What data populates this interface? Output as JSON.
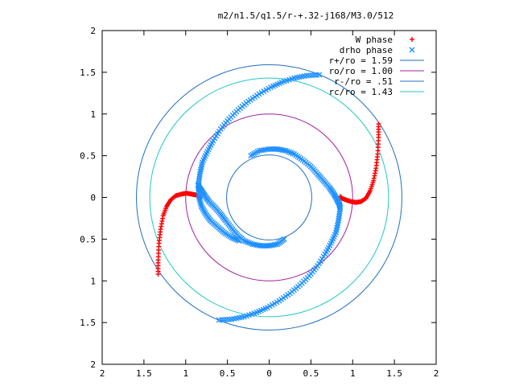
{
  "chart_data": {
    "type": "scatter",
    "title": "m2/n1.5/q1.5/r-+.32-j168/M3.0/512",
    "xlabel": "",
    "ylabel": "",
    "xlim": [
      -2,
      2
    ],
    "ylim": [
      -2,
      2
    ],
    "x_ticks": [
      {
        "value": -2,
        "label": "2"
      },
      {
        "value": -1.5,
        "label": "1.5"
      },
      {
        "value": -1,
        "label": "1"
      },
      {
        "value": -0.5,
        "label": "0.5"
      },
      {
        "value": 0,
        "label": "0"
      },
      {
        "value": 0.5,
        "label": "0.5"
      },
      {
        "value": 1,
        "label": "1"
      },
      {
        "value": 1.5,
        "label": "1.5"
      },
      {
        "value": 2,
        "label": "2"
      }
    ],
    "y_ticks": [
      {
        "value": 2,
        "label": "2"
      },
      {
        "value": 1.5,
        "label": "1.5"
      },
      {
        "value": 1,
        "label": "1"
      },
      {
        "value": 0.5,
        "label": "0.5"
      },
      {
        "value": 0,
        "label": "0"
      },
      {
        "value": -0.5,
        "label": "0.5"
      },
      {
        "value": -1,
        "label": "1"
      },
      {
        "value": -1.5,
        "label": "1.5"
      },
      {
        "value": -2,
        "label": "2"
      }
    ],
    "grid": false,
    "legend_position": "top-right",
    "series": [
      {
        "name": "W phase",
        "marker": "+",
        "color": "#ff0000",
        "x": [
          -1.33,
          -1.33,
          -1.32,
          -1.3,
          -1.27,
          -1.23,
          -1.18,
          -1.12,
          -1.05,
          -0.99,
          -0.93,
          -0.88,
          -0.84,
          -0.83,
          1.31,
          1.31,
          1.3,
          1.28,
          1.25,
          1.21,
          1.16,
          1.1,
          1.04,
          0.98,
          0.92,
          0.87,
          0.85
        ],
        "y": [
          -0.92,
          -0.75,
          -0.55,
          -0.38,
          -0.22,
          -0.11,
          -0.03,
          0.02,
          0.04,
          0.05,
          0.04,
          0.03,
          0.01,
          -0.02,
          0.88,
          0.72,
          0.52,
          0.35,
          0.2,
          0.08,
          -0.01,
          -0.05,
          -0.06,
          -0.05,
          -0.03,
          -0.01,
          0.01
        ]
      },
      {
        "name": "drho phase",
        "marker": "x",
        "color": "#1e90ff",
        "x": [
          0.6,
          0.45,
          0.3,
          0.15,
          0.02,
          -0.12,
          -0.25,
          -0.37,
          -0.48,
          -0.58,
          -0.67,
          -0.74,
          -0.8,
          -0.83,
          -0.85,
          -0.84,
          -0.81,
          -0.76,
          -0.7,
          -0.62,
          -0.54,
          -0.45,
          -0.36,
          -0.22,
          -0.12,
          0.0,
          0.1,
          0.2,
          0.3,
          0.4,
          0.5,
          0.58,
          0.65,
          0.72,
          0.77,
          0.81,
          0.84,
          0.85,
          -0.6,
          -0.45,
          -0.3,
          -0.15,
          -0.02,
          0.12,
          0.25,
          0.37,
          0.48,
          0.58,
          0.67,
          0.74,
          0.8,
          0.83,
          0.85,
          0.18,
          0.1,
          0.0,
          -0.1,
          -0.2,
          -0.3,
          -0.38,
          -0.45,
          -0.52,
          -0.58,
          -0.65,
          -0.72,
          -0.77,
          -0.81,
          -0.84,
          -0.85
        ],
        "y": [
          1.47,
          1.46,
          1.43,
          1.38,
          1.32,
          1.24,
          1.15,
          1.05,
          0.94,
          0.82,
          0.68,
          0.55,
          0.42,
          0.28,
          0.14,
          0.0,
          -0.11,
          -0.2,
          -0.28,
          -0.35,
          -0.42,
          -0.48,
          -0.52,
          0.5,
          0.56,
          0.58,
          0.58,
          0.56,
          0.52,
          0.45,
          0.37,
          0.28,
          0.2,
          0.12,
          0.05,
          -0.02,
          -0.08,
          -0.12,
          -1.47,
          -1.46,
          -1.43,
          -1.38,
          -1.32,
          -1.24,
          -1.15,
          -1.05,
          -0.94,
          -0.82,
          -0.68,
          -0.55,
          -0.42,
          -0.28,
          -0.14,
          -0.5,
          -0.56,
          -0.58,
          -0.58,
          -0.56,
          -0.52,
          -0.45,
          -0.37,
          -0.28,
          -0.2,
          -0.12,
          -0.05,
          0.02,
          0.08,
          0.12,
          0.15
        ]
      },
      {
        "name": "r+/ro = 1.59",
        "type": "circle",
        "radius": 1.59,
        "color": "#1f6fc0"
      },
      {
        "name": "ro/ro = 1.00",
        "type": "circle",
        "radius": 1.0,
        "color": "#a020a0"
      },
      {
        "name": "r-/ro = .51",
        "type": "circle",
        "radius": 0.51,
        "color": "#1f6fc0"
      },
      {
        "name": "rc/ro = 1.43",
        "type": "circle",
        "radius": 1.43,
        "color": "#20c8c8"
      }
    ]
  }
}
